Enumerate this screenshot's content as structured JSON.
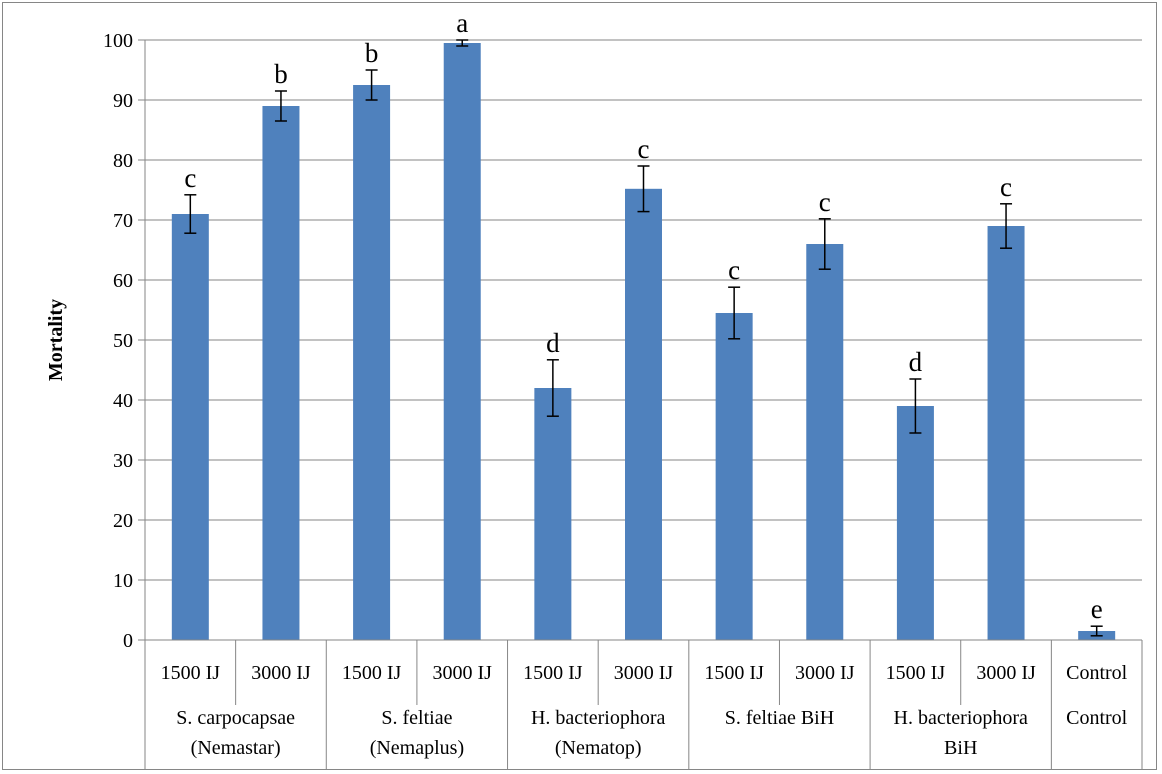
{
  "chart_data": {
    "type": "bar",
    "ylabel": "Mortality",
    "ylim": [
      0,
      100
    ],
    "yticks": [
      0,
      10,
      20,
      30,
      40,
      50,
      60,
      70,
      80,
      90,
      100
    ],
    "grid": true,
    "bar_color": "#4f81bd",
    "categories": [
      {
        "dose": "1500 IJ",
        "group": 0
      },
      {
        "dose": "3000 IJ",
        "group": 0
      },
      {
        "dose": "1500 IJ",
        "group": 1
      },
      {
        "dose": "3000 IJ",
        "group": 1
      },
      {
        "dose": "1500 IJ",
        "group": 2
      },
      {
        "dose": "3000 IJ",
        "group": 2
      },
      {
        "dose": "1500 IJ",
        "group": 3
      },
      {
        "dose": "3000 IJ",
        "group": 3
      },
      {
        "dose": "1500 IJ",
        "group": 4
      },
      {
        "dose": "3000 IJ",
        "group": 4
      },
      {
        "dose": "Control",
        "group": 5
      }
    ],
    "groups": [
      {
        "lines": [
          "S. carpocapsae",
          "(Nemastar)"
        ]
      },
      {
        "lines": [
          "S. feltiae",
          "(Nemaplus)"
        ]
      },
      {
        "lines": [
          "H. bacteriophora",
          "(Nematop)"
        ]
      },
      {
        "lines": [
          "S. feltiae BiH"
        ]
      },
      {
        "lines": [
          "H. bacteriophora",
          "BiH"
        ]
      },
      {
        "lines": [
          "Control"
        ]
      }
    ],
    "values": [
      71,
      89,
      92.5,
      99.5,
      42,
      75.2,
      54.5,
      66,
      39,
      69,
      1.5
    ],
    "errors": [
      3.2,
      2.5,
      2.5,
      0.5,
      4.7,
      3.8,
      4.3,
      4.2,
      4.5,
      3.7,
      0.8
    ],
    "significance_letters": [
      "c",
      "b",
      "b",
      "a",
      "d",
      "c",
      "c",
      "c",
      "d",
      "c",
      "e"
    ]
  }
}
